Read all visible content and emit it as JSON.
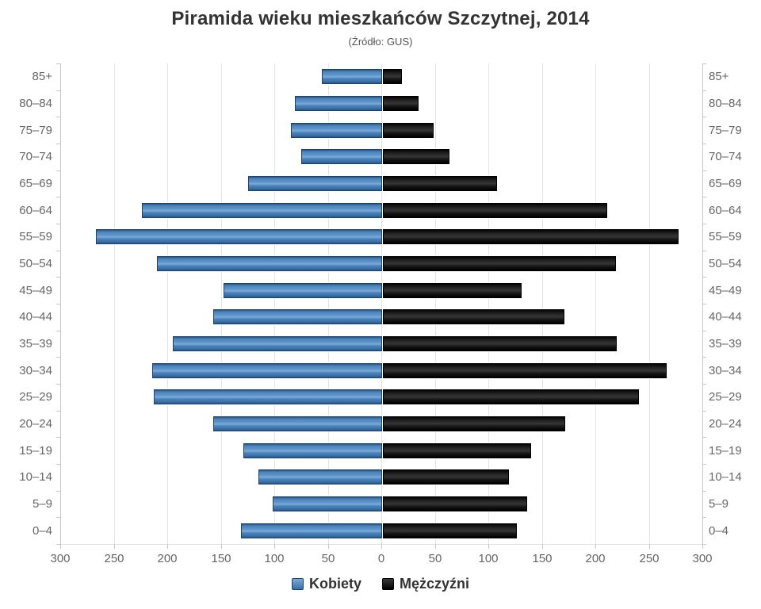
{
  "title": "Piramida wieku mieszkańców Szczytnej, 2014",
  "subtitle": "(Źródło: GUS)",
  "legend": {
    "women_label": "Kobiety",
    "men_label": "Mężczyźni"
  },
  "colors": {
    "women_bar": "#4a7eb5",
    "men_bar": "#141414",
    "axis_text": "#666666",
    "gridline": "#e4e4e4",
    "title_text": "#333333"
  },
  "chart_data": {
    "type": "bar",
    "subtype": "population-pyramid",
    "title": "Piramida wieku mieszkańców Szczytnej, 2014",
    "subtitle": "(Źródło: GUS)",
    "categories": [
      "85+",
      "80–84",
      "75–79",
      "70–74",
      "65–69",
      "60–64",
      "55–59",
      "50–54",
      "45–49",
      "40–44",
      "35–39",
      "30–34",
      "25–29",
      "20–24",
      "15–19",
      "10–14",
      "5–9",
      "0–4"
    ],
    "series": [
      {
        "name": "Kobiety",
        "side": "left",
        "color": "#4a7eb5",
        "values": [
          55,
          80,
          84,
          74,
          124,
          223,
          266,
          209,
          147,
          156,
          194,
          213,
          212,
          156,
          128,
          114,
          101,
          130
        ]
      },
      {
        "name": "Mężczyźni",
        "side": "right",
        "color": "#141414",
        "values": [
          16,
          32,
          46,
          61,
          105,
          208,
          275,
          216,
          128,
          168,
          217,
          264,
          238,
          169,
          137,
          116,
          133,
          124
        ]
      }
    ],
    "xlabel": "",
    "ylabel": "",
    "axis_tick_labels": [
      "300",
      "250",
      "200",
      "150",
      "100",
      "50",
      "0",
      "50",
      "100",
      "150",
      "200",
      "250",
      "300"
    ],
    "axis_max_each_side": 300,
    "grid": true,
    "legend_position": "bottom"
  }
}
